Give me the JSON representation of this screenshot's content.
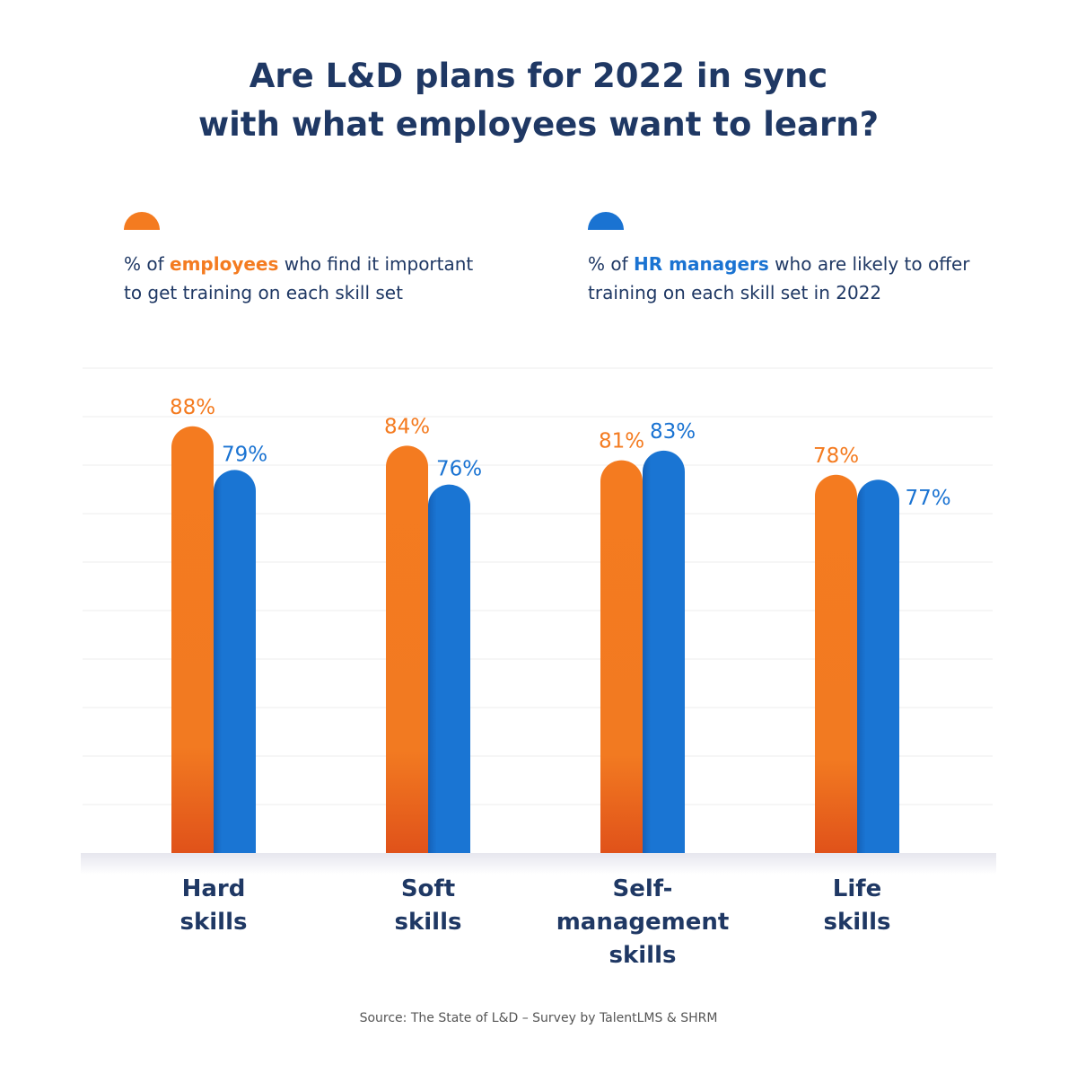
{
  "title_line1": "Are L&D plans for 2022 in sync",
  "title_line2": "with what employees want to learn?",
  "legend": [
    {
      "prefix": "% of ",
      "highlight": "employees",
      "suffix": " who find it important",
      "line2": "to get training on each skill set",
      "color": "#f47b20"
    },
    {
      "prefix": "% of ",
      "highlight": "HR managers",
      "suffix": " who are likely to offer",
      "line2": "training on each skill set in 2022",
      "color": "#1a73d2"
    }
  ],
  "chart_data": {
    "type": "bar",
    "categories": [
      "Hard skills",
      "Soft skills",
      "Self-management skills",
      "Life skills"
    ],
    "category_lines": [
      [
        "Hard",
        "skills"
      ],
      [
        "Soft",
        "skills"
      ],
      [
        "Self-",
        "management",
        "skills"
      ],
      [
        "Life",
        "skills"
      ]
    ],
    "series": [
      {
        "values": [
          88,
          84,
          81,
          78
        ],
        "labels": [
          "88%",
          "84%",
          "81%",
          "78%"
        ],
        "color": "#f47b20"
      },
      {
        "values": [
          79,
          76,
          83,
          77
        ],
        "labels": [
          "79%",
          "76%",
          "83%",
          "77%"
        ],
        "color": "#1a73d2"
      }
    ],
    "ylim": [
      0,
      100
    ],
    "grid": true
  },
  "source": "Source: The State of L&D – Survey by TalentLMS & SHRM"
}
